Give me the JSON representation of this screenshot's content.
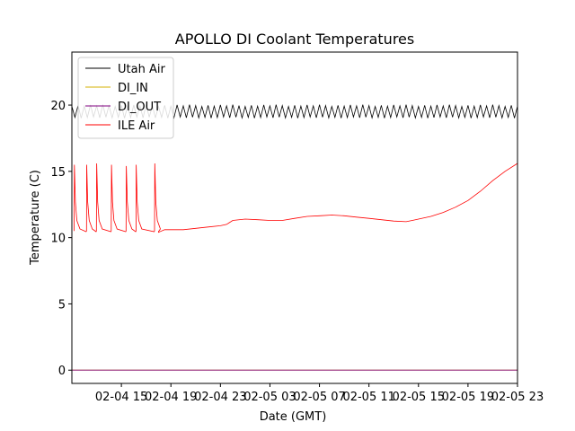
{
  "chart_data": {
    "type": "line",
    "title": "APOLLO DI Coolant Temperatures",
    "xlabel": "Date (GMT)",
    "ylabel": "Temperature (C)",
    "x_unit": "hours since 02-04 11:00 GMT",
    "xlim": [
      0,
      36
    ],
    "ylim": [
      -1,
      24
    ],
    "yticks": [
      0,
      5,
      10,
      15,
      20
    ],
    "xticks": [
      {
        "value": 4,
        "label": "02-04 15"
      },
      {
        "value": 8,
        "label": "02-04 19"
      },
      {
        "value": 12,
        "label": "02-04 23"
      },
      {
        "value": 16,
        "label": "02-05 03"
      },
      {
        "value": 20,
        "label": "02-05 07"
      },
      {
        "value": 24,
        "label": "02-05 11"
      },
      {
        "value": 28,
        "label": "02-05 15"
      },
      {
        "value": 32,
        "label": "02-05 19"
      },
      {
        "value": 36,
        "label": "02-05 23"
      }
    ],
    "legend_position": "top-left",
    "series": [
      {
        "name": "Utah Air",
        "color": "#000000",
        "description": "oscillating about 19.5 C, amplitude about 0.4 C, period about 0.5 h",
        "x": [
          0,
          36
        ],
        "y": [
          19.5,
          19.5
        ],
        "oscillation": {
          "amplitude": 0.4,
          "period": 0.5
        }
      },
      {
        "name": "DI_IN",
        "color": "#d4b000",
        "x": [
          0,
          36
        ],
        "y": [
          0,
          0
        ]
      },
      {
        "name": "DI_OUT",
        "color": "#800080",
        "x": [
          0,
          36
        ],
        "y": [
          0,
          0
        ]
      },
      {
        "name": "ILE Air",
        "color": "#ff0000",
        "spikes": {
          "x": [
            0.2,
            1.2,
            2.0,
            3.2,
            4.4,
            5.2,
            6.7
          ],
          "peak": [
            15.5,
            15.5,
            15.6,
            15.5,
            15.4,
            15.5,
            15.6
          ],
          "base": 10.5
        },
        "x": [
          0,
          7.0,
          7.5,
          8.0,
          9.0,
          10.0,
          11.0,
          12.0,
          12.5,
          13.0,
          14.0,
          15.0,
          16.0,
          17.0,
          18.0,
          19.0,
          20.0,
          21.0,
          22.0,
          23.0,
          24.0,
          25.0,
          26.0,
          27.0,
          27.5,
          28.0,
          29.0,
          30.0,
          31.0,
          32.0,
          33.0,
          34.0,
          35.0,
          36.0
        ],
        "y": [
          10.5,
          10.4,
          10.6,
          10.6,
          10.6,
          10.7,
          10.8,
          10.9,
          11.0,
          11.3,
          11.4,
          11.35,
          11.3,
          11.3,
          11.45,
          11.6,
          11.65,
          11.7,
          11.65,
          11.55,
          11.45,
          11.35,
          11.25,
          11.2,
          11.3,
          11.4,
          11.6,
          11.9,
          12.3,
          12.8,
          13.5,
          14.3,
          15.0,
          15.6
        ]
      }
    ]
  }
}
